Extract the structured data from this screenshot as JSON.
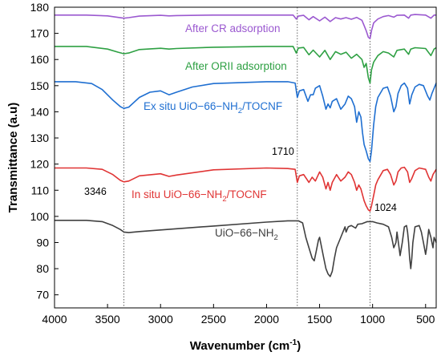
{
  "chart_data": {
    "type": "line",
    "xlabel": "Wavenumber (cm",
    "xlabel_sup": "-1",
    "xlabel_suffix": ")",
    "ylabel": "Transmittance (a.u)",
    "xlim": [
      4000,
      400
    ],
    "ylim": [
      65,
      180
    ],
    "x_reversed": true,
    "xticks": [
      4000,
      3500,
      3000,
      2500,
      2000,
      1500,
      1000,
      500
    ],
    "yticks": [
      70,
      80,
      90,
      100,
      110,
      120,
      130,
      140,
      150,
      160,
      170,
      180
    ],
    "grid": false,
    "reference_lines": [
      {
        "x": 3346,
        "label": "3346"
      },
      {
        "x": 1710,
        "label": "1710"
      },
      {
        "x": 1024,
        "label": "1024"
      }
    ],
    "series": [
      {
        "label_parts": [
          "After CR adsorption"
        ],
        "color": "#9b59d0",
        "points": [
          [
            4000,
            177
          ],
          [
            3700,
            177
          ],
          [
            3500,
            176.7
          ],
          [
            3400,
            176.1
          ],
          [
            3346,
            175.8
          ],
          [
            3300,
            176
          ],
          [
            3200,
            176.6
          ],
          [
            3000,
            176.9
          ],
          [
            2920,
            176.7
          ],
          [
            2850,
            176.8
          ],
          [
            2500,
            177
          ],
          [
            2000,
            177
          ],
          [
            1750,
            177
          ],
          [
            1720,
            175.5
          ],
          [
            1700,
            176.6
          ],
          [
            1650,
            176.9
          ],
          [
            1600,
            175.2
          ],
          [
            1560,
            176.4
          ],
          [
            1500,
            174.8
          ],
          [
            1450,
            176.2
          ],
          [
            1400,
            174.5
          ],
          [
            1350,
            176
          ],
          [
            1300,
            175.5
          ],
          [
            1250,
            176
          ],
          [
            1200,
            175.4
          ],
          [
            1150,
            176.1
          ],
          [
            1100,
            175
          ],
          [
            1080,
            173
          ],
          [
            1060,
            171
          ],
          [
            1040,
            168.5
          ],
          [
            1024,
            168
          ],
          [
            1010,
            171
          ],
          [
            990,
            174
          ],
          [
            950,
            175.5
          ],
          [
            900,
            176.4
          ],
          [
            850,
            176.8
          ],
          [
            800,
            176.2
          ],
          [
            770,
            176.9
          ],
          [
            700,
            177
          ],
          [
            660,
            175.8
          ],
          [
            640,
            177
          ],
          [
            600,
            177.2
          ],
          [
            500,
            177
          ],
          [
            450,
            175.8
          ],
          [
            420,
            177
          ],
          [
            400,
            177
          ]
        ]
      },
      {
        "label_parts": [
          "After ORII adsorption"
        ],
        "color": "#2ea043",
        "points": [
          [
            4000,
            165
          ],
          [
            3700,
            165
          ],
          [
            3500,
            164
          ],
          [
            3400,
            162.8
          ],
          [
            3346,
            162.2
          ],
          [
            3300,
            162.5
          ],
          [
            3200,
            163.8
          ],
          [
            3000,
            164.3
          ],
          [
            2920,
            164
          ],
          [
            2850,
            164.2
          ],
          [
            2500,
            164.7
          ],
          [
            2000,
            165
          ],
          [
            1750,
            165
          ],
          [
            1720,
            162.5
          ],
          [
            1700,
            164.4
          ],
          [
            1650,
            164.6
          ],
          [
            1600,
            161.8
          ],
          [
            1560,
            163.6
          ],
          [
            1500,
            161
          ],
          [
            1450,
            163.5
          ],
          [
            1400,
            160
          ],
          [
            1350,
            163
          ],
          [
            1300,
            162
          ],
          [
            1250,
            162.8
          ],
          [
            1200,
            160.5
          ],
          [
            1150,
            162
          ],
          [
            1100,
            160
          ],
          [
            1080,
            157
          ],
          [
            1060,
            158.5
          ],
          [
            1040,
            153
          ],
          [
            1024,
            151
          ],
          [
            1010,
            156
          ],
          [
            990,
            159
          ],
          [
            950,
            161.5
          ],
          [
            900,
            163
          ],
          [
            850,
            162.5
          ],
          [
            800,
            161
          ],
          [
            770,
            163.5
          ],
          [
            700,
            164
          ],
          [
            660,
            162
          ],
          [
            640,
            164
          ],
          [
            600,
            164.5
          ],
          [
            500,
            164.2
          ],
          [
            450,
            161.5
          ],
          [
            420,
            164
          ],
          [
            400,
            164.5
          ]
        ]
      },
      {
        "label_parts": [
          "Ex situ UiO−66−NH",
          "2",
          "/TOCNF"
        ],
        "color": "#1f6fd1",
        "points": [
          [
            4000,
            151.5
          ],
          [
            3800,
            151.5
          ],
          [
            3650,
            150.8
          ],
          [
            3550,
            148.5
          ],
          [
            3450,
            144.5
          ],
          [
            3380,
            142
          ],
          [
            3346,
            141.3
          ],
          [
            3300,
            141.8
          ],
          [
            3200,
            145.5
          ],
          [
            3100,
            147.5
          ],
          [
            3000,
            148
          ],
          [
            2920,
            146.5
          ],
          [
            2850,
            147.5
          ],
          [
            2700,
            149.5
          ],
          [
            2500,
            150.8
          ],
          [
            2000,
            151.5
          ],
          [
            1800,
            151.5
          ],
          [
            1730,
            151
          ],
          [
            1710,
            145.5
          ],
          [
            1690,
            148
          ],
          [
            1650,
            148.5
          ],
          [
            1610,
            144
          ],
          [
            1585,
            146.5
          ],
          [
            1560,
            146.5
          ],
          [
            1540,
            149
          ],
          [
            1500,
            150
          ],
          [
            1470,
            146
          ],
          [
            1440,
            141
          ],
          [
            1420,
            143
          ],
          [
            1400,
            141.5
          ],
          [
            1380,
            144
          ],
          [
            1340,
            145
          ],
          [
            1300,
            141
          ],
          [
            1260,
            143
          ],
          [
            1230,
            146
          ],
          [
            1200,
            145
          ],
          [
            1170,
            142
          ],
          [
            1150,
            136
          ],
          [
            1130,
            140
          ],
          [
            1110,
            138
          ],
          [
            1095,
            132
          ],
          [
            1080,
            127.5
          ],
          [
            1060,
            125
          ],
          [
            1040,
            122
          ],
          [
            1024,
            121
          ],
          [
            1010,
            125
          ],
          [
            990,
            135
          ],
          [
            970,
            142
          ],
          [
            950,
            145.5
          ],
          [
            900,
            149
          ],
          [
            860,
            149.5
          ],
          [
            830,
            146
          ],
          [
            800,
            140
          ],
          [
            780,
            142
          ],
          [
            760,
            147
          ],
          [
            730,
            150
          ],
          [
            700,
            151
          ],
          [
            670,
            149
          ],
          [
            650,
            143
          ],
          [
            630,
            146.5
          ],
          [
            600,
            149.5
          ],
          [
            560,
            150.5
          ],
          [
            520,
            150
          ],
          [
            480,
            146
          ],
          [
            460,
            144.5
          ],
          [
            440,
            147
          ],
          [
            420,
            149
          ],
          [
            400,
            151
          ]
        ]
      },
      {
        "label_parts": [
          "In situ UiO−66−NH",
          "2",
          "/TOCNF"
        ],
        "color": "#e03434",
        "points": [
          [
            4000,
            118.5
          ],
          [
            3700,
            118.5
          ],
          [
            3550,
            118
          ],
          [
            3450,
            116
          ],
          [
            3380,
            113.8
          ],
          [
            3346,
            113.2
          ],
          [
            3300,
            113.5
          ],
          [
            3200,
            115.5
          ],
          [
            3000,
            116.3
          ],
          [
            2920,
            115.3
          ],
          [
            2850,
            115.8
          ],
          [
            2500,
            117.8
          ],
          [
            2000,
            118.5
          ],
          [
            1800,
            118.3
          ],
          [
            1730,
            118
          ],
          [
            1710,
            113
          ],
          [
            1690,
            115.5
          ],
          [
            1650,
            116
          ],
          [
            1600,
            113
          ],
          [
            1570,
            115
          ],
          [
            1540,
            113.5
          ],
          [
            1500,
            117
          ],
          [
            1470,
            115
          ],
          [
            1440,
            110.5
          ],
          [
            1420,
            113
          ],
          [
            1400,
            110
          ],
          [
            1380,
            113
          ],
          [
            1340,
            116
          ],
          [
            1300,
            113.5
          ],
          [
            1260,
            115
          ],
          [
            1230,
            117
          ],
          [
            1200,
            116
          ],
          [
            1170,
            113
          ],
          [
            1150,
            110
          ],
          [
            1130,
            112
          ],
          [
            1110,
            110.5
          ],
          [
            1080,
            106
          ],
          [
            1060,
            104
          ],
          [
            1040,
            102.5
          ],
          [
            1024,
            102
          ],
          [
            1010,
            104
          ],
          [
            990,
            108
          ],
          [
            970,
            112
          ],
          [
            950,
            114
          ],
          [
            900,
            117.5
          ],
          [
            860,
            118
          ],
          [
            830,
            116
          ],
          [
            800,
            112
          ],
          [
            780,
            113.5
          ],
          [
            760,
            117
          ],
          [
            730,
            118.5
          ],
          [
            700,
            118.8
          ],
          [
            670,
            117
          ],
          [
            650,
            113
          ],
          [
            630,
            114.5
          ],
          [
            600,
            117.5
          ],
          [
            560,
            118.5
          ],
          [
            500,
            118
          ],
          [
            470,
            115
          ],
          [
            450,
            113.5
          ],
          [
            430,
            116
          ],
          [
            400,
            118
          ]
        ]
      },
      {
        "label_parts": [
          "UiO−66−NH",
          "2"
        ],
        "color": "#404040",
        "points": [
          [
            4000,
            98.5
          ],
          [
            3700,
            98.5
          ],
          [
            3550,
            98
          ],
          [
            3450,
            96.5
          ],
          [
            3380,
            95
          ],
          [
            3346,
            94
          ],
          [
            3300,
            93.8
          ],
          [
            3200,
            94.2
          ],
          [
            3000,
            94.8
          ],
          [
            2500,
            96.3
          ],
          [
            2000,
            97.8
          ],
          [
            1800,
            98.3
          ],
          [
            1700,
            98.3
          ],
          [
            1660,
            97.5
          ],
          [
            1630,
            92
          ],
          [
            1600,
            88
          ],
          [
            1570,
            84
          ],
          [
            1550,
            83
          ],
          [
            1530,
            87
          ],
          [
            1510,
            91
          ],
          [
            1500,
            92
          ],
          [
            1480,
            88
          ],
          [
            1460,
            84
          ],
          [
            1440,
            80
          ],
          [
            1420,
            78
          ],
          [
            1400,
            77
          ],
          [
            1380,
            79
          ],
          [
            1360,
            84
          ],
          [
            1340,
            88
          ],
          [
            1300,
            92
          ],
          [
            1260,
            96
          ],
          [
            1250,
            94
          ],
          [
            1230,
            96
          ],
          [
            1200,
            96.5
          ],
          [
            1160,
            95.5
          ],
          [
            1140,
            97
          ],
          [
            1100,
            97.2
          ],
          [
            1050,
            98
          ],
          [
            1000,
            98
          ],
          [
            960,
            97.5
          ],
          [
            900,
            97
          ],
          [
            850,
            96
          ],
          [
            820,
            92
          ],
          [
            800,
            88
          ],
          [
            780,
            90
          ],
          [
            770,
            94
          ],
          [
            760,
            91
          ],
          [
            740,
            85
          ],
          [
            720,
            90
          ],
          [
            700,
            96
          ],
          [
            680,
            96.5
          ],
          [
            670,
            94
          ],
          [
            660,
            90
          ],
          [
            650,
            84
          ],
          [
            640,
            80
          ],
          [
            630,
            84
          ],
          [
            620,
            90
          ],
          [
            600,
            96
          ],
          [
            560,
            96.5
          ],
          [
            540,
            94
          ],
          [
            520,
            90
          ],
          [
            500,
            85.5
          ],
          [
            490,
            88
          ],
          [
            470,
            95
          ],
          [
            450,
            92
          ],
          [
            430,
            88
          ],
          [
            420,
            92
          ],
          [
            400,
            90
          ]
        ]
      }
    ]
  }
}
